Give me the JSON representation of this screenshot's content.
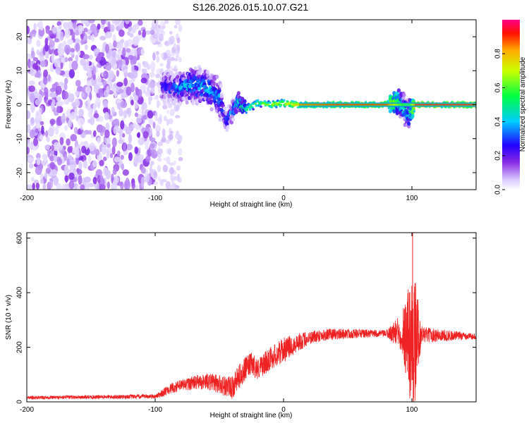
{
  "figure_title": "S126.2026.015.10.07.G21",
  "chart_data": [
    {
      "type": "heatmap",
      "title": "S126.2026.015.10.07.G21",
      "xlabel": "Height of straight line (km)",
      "ylabel": "Frequency (Hz)",
      "xlim": [
        -200,
        150
      ],
      "ylim": [
        -25,
        25
      ],
      "xticks": [
        -200,
        -100,
        0,
        100
      ],
      "yticks": [
        -20,
        -10,
        0,
        10,
        20
      ],
      "xtick_labels": [
        "-200",
        "-100",
        "0",
        "100"
      ],
      "ytick_labels": [
        "-20",
        "-10",
        "0",
        "10",
        "20"
      ],
      "colorbar": {
        "label": "Normalized spectral amplitude",
        "range": [
          0,
          1
        ],
        "ticks": [
          0.0,
          0.2,
          0.4,
          0.6,
          0.8
        ],
        "tick_labels": [
          "0.0",
          "0.2",
          "0.4",
          "0.6",
          "0.8"
        ],
        "colormap": [
          "#ffffff",
          "#e8d8ff",
          "#8a2be2",
          "#0000ff",
          "#00ffff",
          "#00ff00",
          "#ffff00",
          "#ff0000",
          "#ff00aa"
        ]
      },
      "noise_region": {
        "x_range": [
          -200,
          -100
        ],
        "f_range": [
          -25,
          25
        ],
        "amplitude": 0.1
      },
      "ridge": [
        {
          "x": -90,
          "f": 5.5,
          "spread": 4.5,
          "amp": 0.35
        },
        {
          "x": -80,
          "f": 5.0,
          "spread": 4.0,
          "amp": 0.45
        },
        {
          "x": -70,
          "f": 6.0,
          "spread": 5.0,
          "amp": 0.45
        },
        {
          "x": -60,
          "f": 5.0,
          "spread": 4.5,
          "amp": 0.5
        },
        {
          "x": -50,
          "f": 2.0,
          "spread": 5.0,
          "amp": 0.45
        },
        {
          "x": -45,
          "f": -5.0,
          "spread": 3.0,
          "amp": 0.35
        },
        {
          "x": -35,
          "f": 1.0,
          "spread": 2.0,
          "amp": 0.55
        },
        {
          "x": -30,
          "f": -1.5,
          "spread": 1.5,
          "amp": 0.6
        },
        {
          "x": -20,
          "f": 0.5,
          "spread": 1.0,
          "amp": 0.7
        },
        {
          "x": -10,
          "f": 0.0,
          "spread": 1.0,
          "amp": 0.75
        },
        {
          "x": 0,
          "f": 0.5,
          "spread": 1.0,
          "amp": 0.8
        },
        {
          "x": 10,
          "f": 0.0,
          "spread": 0.8,
          "amp": 0.85
        },
        {
          "x": 40,
          "f": 0.0,
          "spread": 0.8,
          "amp": 0.9
        },
        {
          "x": 80,
          "f": 0.0,
          "spread": 0.8,
          "amp": 0.9
        },
        {
          "x": 90,
          "f": 1.0,
          "spread": 3.0,
          "amp": 0.6
        },
        {
          "x": 97,
          "f": -3.0,
          "spread": 4.0,
          "amp": 0.45
        },
        {
          "x": 103,
          "f": 0.0,
          "spread": 0.8,
          "amp": 0.95
        },
        {
          "x": 150,
          "f": 0.0,
          "spread": 0.8,
          "amp": 0.95
        }
      ]
    },
    {
      "type": "line",
      "title": "",
      "xlabel": "Height of straight line (km)",
      "ylabel": "SNR (10 * v/v)",
      "xlim": [
        -200,
        150
      ],
      "ylim": [
        0,
        620
      ],
      "xticks": [
        -200,
        -100,
        0,
        100
      ],
      "yticks": [
        0,
        200,
        400,
        600
      ],
      "xtick_labels": [
        "-200",
        "-100",
        "0",
        "100"
      ],
      "ytick_labels": [
        "0",
        "200",
        "400",
        "600"
      ],
      "color": "#ee2222",
      "series": [
        {
          "name": "SNR",
          "mean": {
            "x": [
              -200,
              -100,
              -95,
              -90,
              -80,
              -70,
              -60,
              -50,
              -40,
              -35,
              -30,
              -25,
              -20,
              -15,
              -10,
              -5,
              0,
              10,
              15,
              20,
              30,
              50,
              80,
              90,
              95,
              100,
              105,
              110,
              150
            ],
            "y": [
              15,
              20,
              30,
              45,
              60,
              70,
              75,
              65,
              50,
              90,
              120,
              140,
              120,
              140,
              160,
              175,
              190,
              215,
              225,
              235,
              245,
              250,
              250,
              255,
              250,
              210,
              250,
              245,
              240
            ]
          },
          "amplitude": {
            "x": [
              -200,
              -100,
              -90,
              -60,
              -35,
              -20,
              0,
              20,
              80,
              92,
              96,
              99,
              101,
              104,
              108,
              150
            ],
            "y": [
              6,
              8,
              18,
              30,
              45,
              40,
              45,
              25,
              12,
              70,
              180,
              230,
              300,
              150,
              30,
              10
            ]
          },
          "peak_max": {
            "x": 100.5,
            "y": 620
          }
        }
      ]
    }
  ]
}
